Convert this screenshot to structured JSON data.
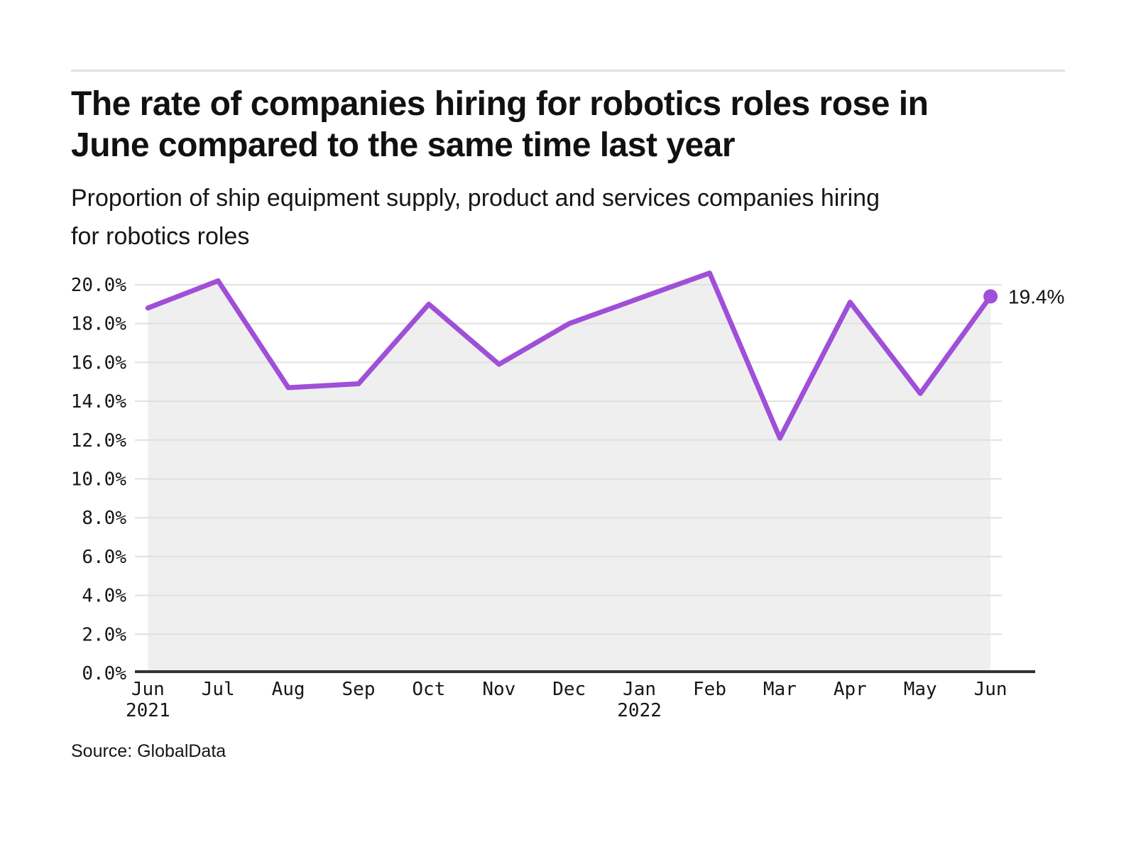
{
  "header": {
    "title_lines": [
      "The rate of companies hiring for robotics roles rose in",
      "June compared to the same time last year"
    ],
    "subtitle_lines": [
      "Proportion of ship equipment supply, product and services companies hiring",
      "for robotics roles"
    ]
  },
  "footer": {
    "source": "Source: GlobalData"
  },
  "chart_data": {
    "type": "line",
    "title": "The rate of companies hiring for robotics roles rose in June compared to the same time last year",
    "subtitle": "Proportion of ship equipment supply, product and services companies hiring for robotics roles",
    "categories": [
      "Jun",
      "Jul",
      "Aug",
      "Sep",
      "Oct",
      "Nov",
      "Dec",
      "Jan",
      "Feb",
      "Mar",
      "Apr",
      "May",
      "Jun"
    ],
    "year_labels": [
      {
        "index": 0,
        "label": "2021"
      },
      {
        "index": 7,
        "label": "2022"
      }
    ],
    "series": [
      {
        "name": "Proportion of companies hiring for robotics roles",
        "values": [
          18.8,
          20.2,
          14.7,
          14.9,
          19.0,
          15.9,
          18.0,
          19.3,
          20.6,
          12.1,
          19.1,
          14.4,
          19.4
        ]
      }
    ],
    "end_label": "19.4%",
    "ylim": [
      0,
      20
    ],
    "yticks": [
      {
        "value": 0,
        "label": "0.0%"
      },
      {
        "value": 2,
        "label": "2.0%"
      },
      {
        "value": 4,
        "label": "4.0%"
      },
      {
        "value": 6,
        "label": "6.0%"
      },
      {
        "value": 8,
        "label": "8.0%"
      },
      {
        "value": 10,
        "label": "10.0%"
      },
      {
        "value": 12,
        "label": "12.0%"
      },
      {
        "value": 14,
        "label": "14.0%"
      },
      {
        "value": 16,
        "label": "16.0%"
      },
      {
        "value": 18,
        "label": "18.0%"
      },
      {
        "value": 20,
        "label": "20.0%"
      }
    ],
    "grid": true,
    "legend": "none",
    "colors": {
      "line": "#9f4fd8",
      "area": "#efefef",
      "grid": "#e0e0e0",
      "axis": "#333333",
      "text": "#161616"
    }
  }
}
